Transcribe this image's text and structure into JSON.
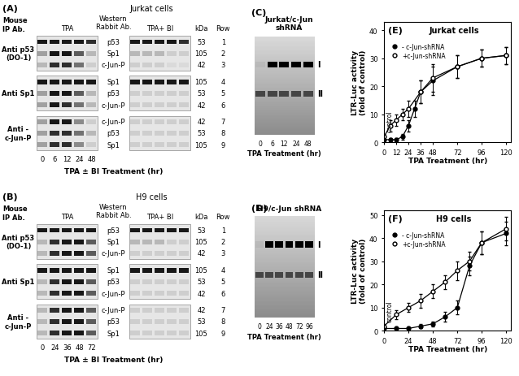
{
  "blots": [
    {
      "label": "(A)",
      "cell": "Jurkat cells",
      "header": "Western\nRabbit Ab.",
      "ip_header": "Mouse\nIP Ab.",
      "conditions": [
        "TPA",
        "TPA+ BI"
      ],
      "kda_header": "kDa",
      "row_header": "Row",
      "lanes": [
        0,
        6,
        12,
        24,
        48
      ],
      "xlabel": "TPA ± BI Treatment (hr)",
      "groups": [
        {
          "ip": "Anti p53\n(DO-1)",
          "rows": [
            {
              "row": 1,
              "protein": "p53",
              "kda": 53,
              "left": [
                0.9,
                0.9,
                0.9,
                0.9,
                0.8
              ],
              "right": [
                0.9,
                0.9,
                0.9,
                0.9,
                0.8
              ]
            },
            {
              "row": 2,
              "protein": "Sp1",
              "kda": 105,
              "left": [
                0.3,
                0.9,
                0.9,
                0.6,
                0.2
              ],
              "right": [
                0.2,
                0.2,
                0.2,
                0.1,
                0.1
              ]
            },
            {
              "row": 3,
              "protein": "c-Jun-P",
              "kda": 42,
              "left": [
                0.2,
                0.8,
                0.8,
                0.5,
                0.1
              ],
              "right": [
                0.1,
                0.1,
                0.1,
                0.05,
                0.05
              ]
            }
          ]
        },
        {
          "ip": "Anti Sp1",
          "rows": [
            {
              "row": 4,
              "protein": "Sp1",
              "kda": 105,
              "left": [
                0.9,
                0.9,
                0.9,
                0.9,
                0.9
              ],
              "right": [
                0.9,
                0.9,
                0.9,
                0.9,
                0.9
              ]
            },
            {
              "row": 5,
              "protein": "p53",
              "kda": 53,
              "left": [
                0.3,
                0.9,
                0.9,
                0.6,
                0.2
              ],
              "right": [
                0.1,
                0.1,
                0.1,
                0.1,
                0.1
              ]
            },
            {
              "row": 6,
              "protein": "c-Jun-P",
              "kda": 42,
              "left": [
                0.3,
                0.9,
                0.8,
                0.5,
                0.2
              ],
              "right": [
                0.1,
                0.1,
                0.1,
                0.1,
                0.1
              ]
            }
          ]
        },
        {
          "ip": "Anti -\nc-Jun-P",
          "rows": [
            {
              "row": 7,
              "protein": "c-Jun-P",
              "kda": 42,
              "left": [
                0.3,
                0.9,
                0.9,
                0.4,
                0.1
              ],
              "right": [
                0.1,
                0.1,
                0.1,
                0.1,
                0.1
              ]
            },
            {
              "row": 8,
              "protein": "p53",
              "kda": 53,
              "left": [
                0.3,
                0.8,
                0.8,
                0.5,
                0.2
              ],
              "right": [
                0.1,
                0.1,
                0.1,
                0.1,
                0.1
              ]
            },
            {
              "row": 9,
              "protein": "Sp1",
              "kda": 105,
              "left": [
                0.3,
                0.8,
                0.8,
                0.4,
                0.1
              ],
              "right": [
                0.1,
                0.1,
                0.1,
                0.1,
                0.1
              ]
            }
          ]
        }
      ]
    },
    {
      "label": "(B)",
      "cell": "H9 cells",
      "header": "Western\nRabbit Ab.",
      "ip_header": "Mouse\nIP Ab.",
      "conditions": [
        "TPA",
        "TPA+ BI"
      ],
      "kda_header": "kDa",
      "row_header": "Row",
      "lanes": [
        0,
        24,
        36,
        48,
        72
      ],
      "xlabel": "TPA ± BI Treatment (hr)",
      "groups": [
        {
          "ip": "Anti p53\n(DO-1)",
          "rows": [
            {
              "row": 1,
              "protein": "p53",
              "kda": 53,
              "left": [
                0.9,
                0.9,
                0.9,
                0.9,
                0.9
              ],
              "right": [
                0.9,
                0.9,
                0.9,
                0.9,
                0.9
              ]
            },
            {
              "row": 2,
              "protein": "Sp1",
              "kda": 105,
              "left": [
                0.2,
                0.8,
                0.9,
                0.9,
                0.6
              ],
              "right": [
                0.2,
                0.2,
                0.2,
                0.1,
                0.1
              ]
            },
            {
              "row": 3,
              "protein": "c-Jun-P",
              "kda": 42,
              "left": [
                0.2,
                0.8,
                0.9,
                0.9,
                0.6
              ],
              "right": [
                0.1,
                0.1,
                0.1,
                0.1,
                0.1
              ]
            }
          ]
        },
        {
          "ip": "Anti Sp1",
          "rows": [
            {
              "row": 4,
              "protein": "Sp1",
              "kda": 105,
              "left": [
                0.9,
                0.9,
                0.9,
                0.9,
                0.9
              ],
              "right": [
                0.9,
                0.9,
                0.9,
                0.9,
                0.9
              ]
            },
            {
              "row": 5,
              "protein": "p53",
              "kda": 53,
              "left": [
                0.2,
                0.8,
                0.9,
                0.9,
                0.6
              ],
              "right": [
                0.1,
                0.1,
                0.1,
                0.1,
                0.1
              ]
            },
            {
              "row": 6,
              "protein": "c-Jun-P",
              "kda": 42,
              "left": [
                0.2,
                0.8,
                0.9,
                0.9,
                0.6
              ],
              "right": [
                0.1,
                0.1,
                0.1,
                0.1,
                0.1
              ]
            }
          ]
        },
        {
          "ip": "Anti -\nc-Jun-P",
          "rows": [
            {
              "row": 7,
              "protein": "c-Jun-P",
              "kda": 42,
              "left": [
                0.2,
                0.8,
                0.9,
                0.9,
                0.6
              ],
              "right": [
                0.1,
                0.1,
                0.1,
                0.1,
                0.1
              ]
            },
            {
              "row": 8,
              "protein": "p53",
              "kda": 53,
              "left": [
                0.2,
                0.8,
                0.9,
                0.9,
                0.6
              ],
              "right": [
                0.1,
                0.1,
                0.1,
                0.1,
                0.1
              ]
            },
            {
              "row": 9,
              "protein": "Sp1",
              "kda": 105,
              "left": [
                0.2,
                0.8,
                0.9,
                0.9,
                0.6
              ],
              "right": [
                0.1,
                0.1,
                0.1,
                0.1,
                0.1
              ]
            }
          ]
        }
      ]
    }
  ],
  "gels": [
    {
      "label": "(C)",
      "title": "Jurkat/c-Jun\nshRNA",
      "lanes": [
        0,
        6,
        12,
        24,
        48
      ],
      "xlabel": "TPA Treatment (hr)",
      "bands": [
        {
          "name": "I",
          "intensity": [
            0.05,
            1,
            1,
            1,
            1
          ]
        },
        {
          "name": "II",
          "intensity": [
            0.6,
            0.6,
            0.6,
            0.6,
            0.6
          ]
        }
      ]
    },
    {
      "label": "(D)",
      "title": "H9/c-Jun shRNA",
      "lanes": [
        0,
        24,
        36,
        48,
        72,
        96
      ],
      "xlabel": "TPA Treatment (hr)",
      "bands": [
        {
          "name": "I",
          "intensity": [
            0.05,
            1,
            1,
            1,
            1,
            1
          ]
        },
        {
          "name": "II",
          "intensity": [
            0.6,
            0.6,
            0.6,
            0.6,
            0.6,
            0.6
          ]
        }
      ]
    }
  ],
  "chart_data": [
    {
      "type": "line",
      "panel_label": "(E)",
      "title": "Jurkat cells",
      "x_label": "TPA Treatment (hr)",
      "y_label": "LTR-Luc activity\n(fold of control)",
      "xlim": [
        0,
        125
      ],
      "xticks": [
        0,
        12,
        24,
        36,
        48,
        72,
        96,
        120
      ],
      "ylim": [
        0,
        43
      ],
      "yticks": [
        0,
        10,
        20,
        30,
        40
      ],
      "legend": "upper left",
      "annotations": [
        "control"
      ],
      "series": [
        {
          "name": "- c-Jun-shRNA",
          "color": "#000000",
          "marker": "circle",
          "x": [
            0,
            6,
            12,
            18,
            24,
            30,
            36,
            48,
            72,
            96,
            120
          ],
          "values": [
            1,
            1,
            1,
            2,
            6,
            12,
            18,
            22,
            27,
            30,
            31
          ],
          "errors": [
            0.5,
            0.5,
            0.5,
            1,
            2,
            3,
            4,
            5,
            4,
            3,
            3
          ]
        },
        {
          "name": "+c-Jun-shRNA",
          "color": "#000000",
          "marker": "open_circle",
          "x": [
            0,
            6,
            12,
            18,
            24,
            36,
            48,
            72,
            96,
            120
          ],
          "values": [
            2,
            6,
            8,
            10,
            12,
            18,
            23,
            27,
            30,
            31
          ],
          "errors": [
            1,
            2,
            2,
            2,
            3,
            4,
            5,
            4,
            3,
            3
          ]
        }
      ]
    },
    {
      "type": "line",
      "panel_label": "(F)",
      "title": "H9 cells",
      "x_label": "TPA Treatment (hr)",
      "y_label": "LTR-Luc activity\n(fold of control)",
      "xlim": [
        0,
        125
      ],
      "xticks": [
        0,
        24,
        48,
        72,
        96,
        120
      ],
      "ylim": [
        0,
        52
      ],
      "yticks": [
        0,
        10,
        20,
        30,
        40,
        50
      ],
      "legend": "upper left",
      "annotations": [
        "control"
      ],
      "series": [
        {
          "name": "- c-Jun-shRNA",
          "color": "#000000",
          "marker": "circle",
          "x": [
            0,
            12,
            24,
            36,
            48,
            60,
            72,
            84,
            96,
            120
          ],
          "values": [
            1,
            1,
            1,
            2,
            3,
            6,
            10,
            28,
            38,
            42
          ],
          "errors": [
            0.5,
            0.5,
            0.5,
            1,
            1,
            2,
            3,
            4,
            5,
            5
          ]
        },
        {
          "name": "+c-Jun-shRNA",
          "color": "#000000",
          "marker": "open_circle",
          "x": [
            0,
            12,
            24,
            36,
            48,
            60,
            72,
            84,
            96,
            120
          ],
          "values": [
            2,
            7,
            10,
            13,
            17,
            21,
            26,
            30,
            38,
            44
          ],
          "errors": [
            1,
            2,
            2,
            3,
            3,
            3,
            4,
            4,
            5,
            5
          ]
        }
      ]
    }
  ]
}
